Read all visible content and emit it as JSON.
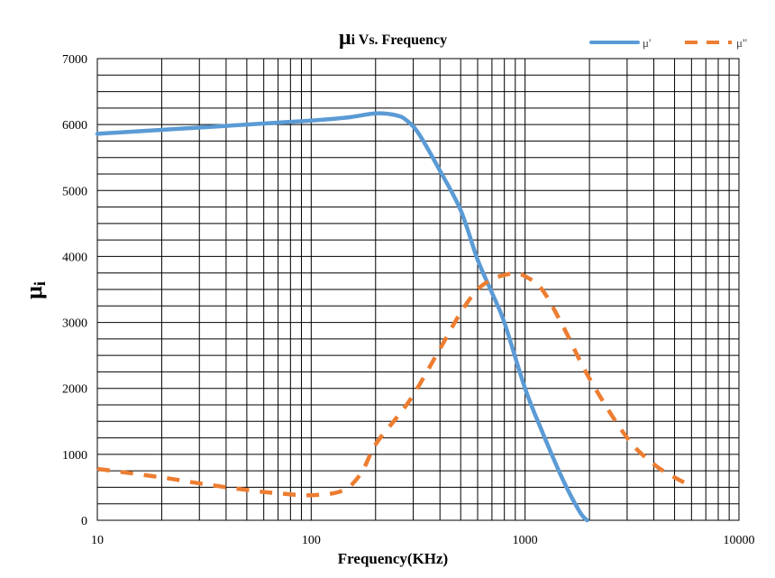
{
  "chart_data": {
    "type": "line",
    "title": {
      "symbol": "μ",
      "rest": "i Vs. Frequency"
    },
    "xlabel": "Frequency(KHz)",
    "ylabel": {
      "symbol": "μ",
      "sub": "i"
    },
    "xscale": "log",
    "xlim": [
      10,
      10000
    ],
    "ylim": [
      0,
      7000
    ],
    "x_ticks": [
      "10",
      "100",
      "1000",
      "10000"
    ],
    "y_ticks": [
      "0",
      "1000",
      "2000",
      "3000",
      "4000",
      "5000",
      "6000",
      "7000"
    ],
    "grid": true,
    "legend_position": "top-right",
    "series": [
      {
        "name": "μ'",
        "color": "#5b9bd5",
        "dash": "solid",
        "x": [
          10,
          20,
          40,
          70,
          100,
          150,
          200,
          250,
          280,
          320,
          400,
          500,
          600,
          700,
          800,
          1000,
          1200,
          1500,
          1800,
          1950
        ],
        "y": [
          5860,
          5920,
          5980,
          6030,
          6060,
          6110,
          6170,
          6140,
          6060,
          5850,
          5300,
          4700,
          3950,
          3450,
          3000,
          2000,
          1350,
          620,
          130,
          0
        ]
      },
      {
        "name": "μ\"",
        "color": "#ed7d31",
        "dash": "dashed",
        "x": [
          10,
          20,
          30,
          50,
          70,
          100,
          140,
          170,
          200,
          250,
          300,
          400,
          500,
          600,
          700,
          800,
          900,
          1000,
          1200,
          1500,
          2000,
          3000,
          4000,
          5000,
          6000
        ],
        "y": [
          780,
          650,
          560,
          460,
          410,
          380,
          450,
          700,
          1150,
          1550,
          1900,
          2600,
          3150,
          3500,
          3650,
          3720,
          3740,
          3700,
          3500,
          2950,
          2150,
          1250,
          850,
          650,
          520
        ]
      }
    ]
  }
}
